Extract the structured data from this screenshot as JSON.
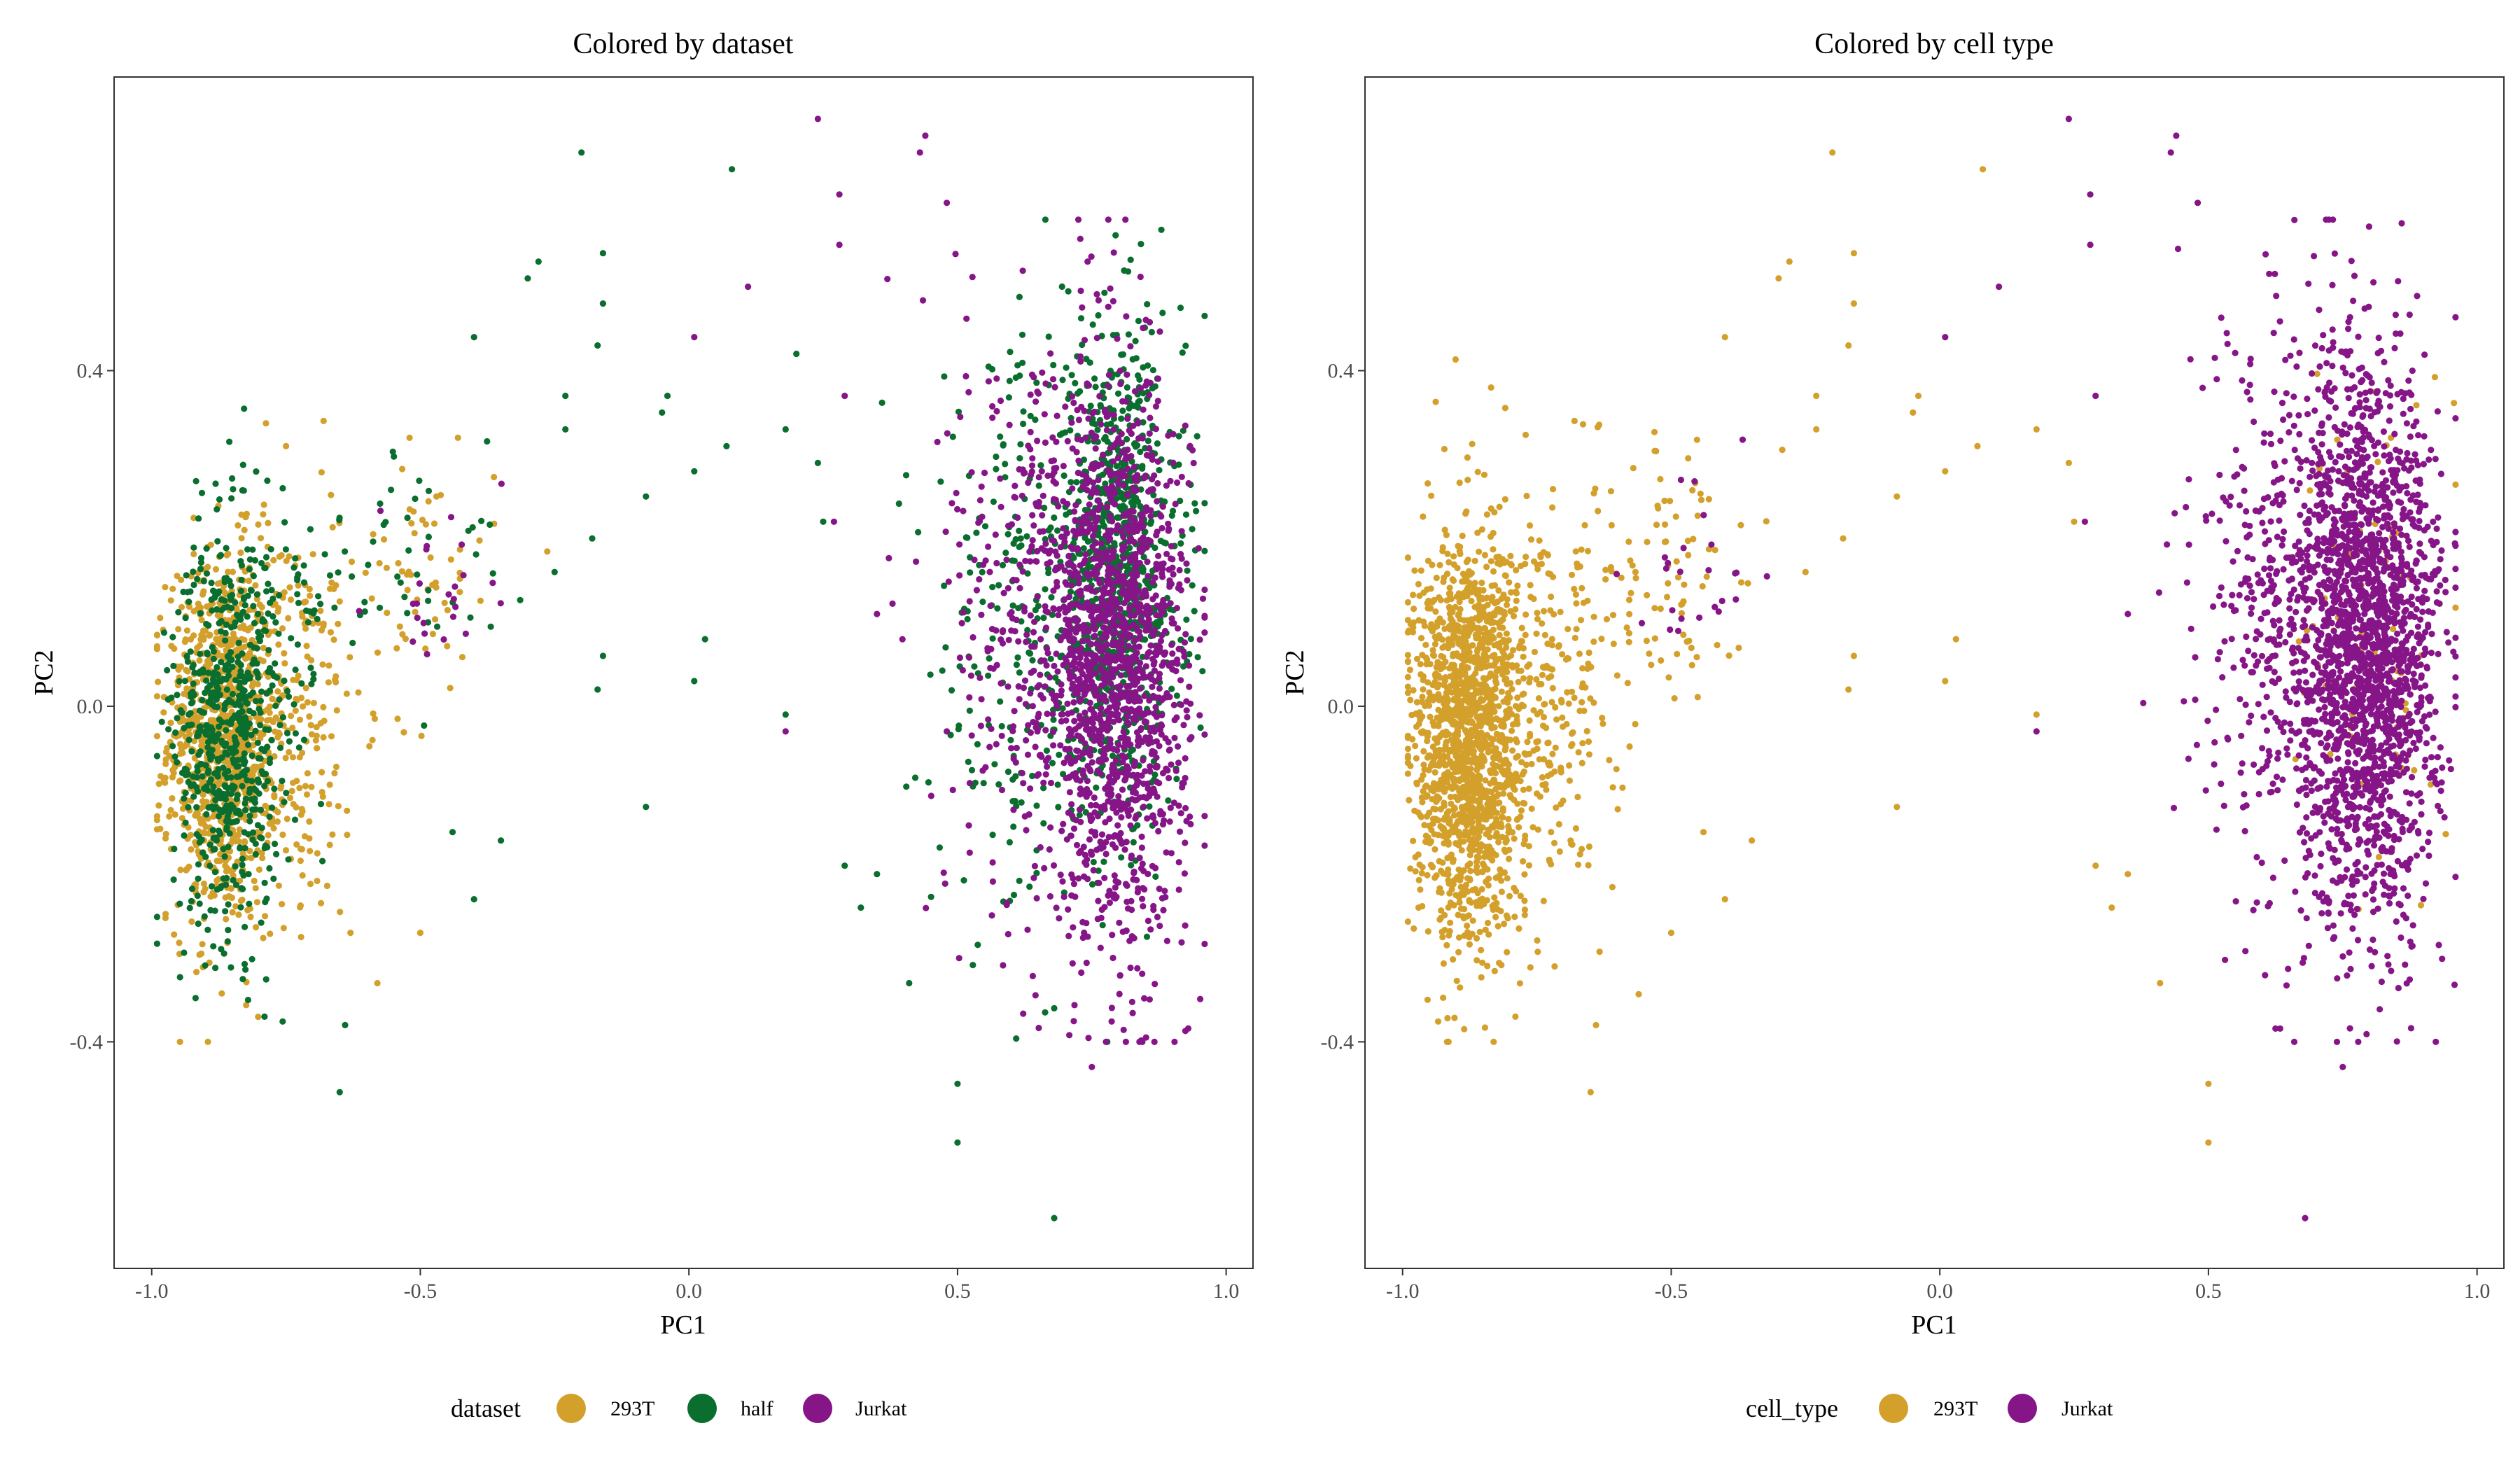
{
  "chart_data": [
    {
      "type": "scatter",
      "title": "Colored by dataset",
      "xlabel": "PC1",
      "ylabel": "PC2",
      "xlim": [
        -1.07,
        1.05
      ],
      "ylim": [
        -0.67,
        0.75
      ],
      "xticks": [
        -1.0,
        -0.5,
        0.0,
        0.5,
        1.0
      ],
      "xtick_labels": [
        "-1.0",
        "-0.5",
        "0.0",
        "0.5",
        "1.0"
      ],
      "yticks": [
        -0.4,
        0.0,
        0.4
      ],
      "ytick_labels": [
        "-0.4",
        "0.0",
        "0.4"
      ],
      "grid": false,
      "legend": {
        "title": "dataset",
        "position": "bottom"
      },
      "series": [
        {
          "name": "293T",
          "color": "#D4A02C",
          "clusters": [
            {
              "cx": -0.87,
              "cy": -0.04,
              "sx": 0.05,
              "sy": 0.11,
              "n": 950
            },
            {
              "cx": -0.75,
              "cy": -0.02,
              "sx": 0.07,
              "sy": 0.12,
              "n": 240
            },
            {
              "cx": -0.52,
              "cy": 0.15,
              "sx": 0.08,
              "sy": 0.08,
              "n": 70
            }
          ],
          "outliers": [
            [
              -0.68,
              0.34
            ],
            [
              -0.52,
              0.32
            ],
            [
              -0.75,
              0.31
            ],
            [
              -0.5,
              -0.27
            ],
            [
              -0.58,
              -0.33
            ],
            [
              -0.63,
              -0.27
            ],
            [
              -0.47,
              0.25
            ],
            [
              -0.43,
              0.32
            ]
          ]
        },
        {
          "name": "half",
          "color": "#0A6E2E",
          "clusters": [
            {
              "cx": -0.86,
              "cy": -0.03,
              "sx": 0.05,
              "sy": 0.12,
              "n": 600
            },
            {
              "cx": -0.76,
              "cy": 0.08,
              "sx": 0.06,
              "sy": 0.1,
              "n": 90
            },
            {
              "cx": -0.5,
              "cy": 0.18,
              "sx": 0.08,
              "sy": 0.07,
              "n": 40
            },
            {
              "cx": 0.8,
              "cy": 0.16,
              "sx": 0.06,
              "sy": 0.14,
              "n": 850
            },
            {
              "cx": 0.63,
              "cy": 0.08,
              "sx": 0.09,
              "sy": 0.17,
              "n": 250
            }
          ],
          "outliers": [
            [
              -0.2,
              0.66
            ],
            [
              0.08,
              0.64
            ],
            [
              -0.28,
              0.53
            ],
            [
              -0.16,
              0.54
            ],
            [
              -0.3,
              0.51
            ],
            [
              -0.16,
              0.48
            ],
            [
              -0.17,
              0.43
            ],
            [
              -0.4,
              0.44
            ],
            [
              -0.23,
              0.37
            ],
            [
              -0.04,
              0.37
            ],
            [
              -0.05,
              0.35
            ],
            [
              0.01,
              0.28
            ],
            [
              -0.23,
              0.33
            ],
            [
              0.07,
              0.31
            ],
            [
              0.18,
              0.33
            ],
            [
              0.24,
              0.29
            ],
            [
              0.25,
              0.22
            ],
            [
              -0.08,
              0.25
            ],
            [
              -0.25,
              0.16
            ],
            [
              -0.18,
              0.2
            ],
            [
              -0.16,
              0.06
            ],
            [
              -0.17,
              0.02
            ],
            [
              0.03,
              0.08
            ],
            [
              0.01,
              0.03
            ],
            [
              0.18,
              -0.01
            ],
            [
              -0.08,
              -0.12
            ],
            [
              -0.35,
              -0.16
            ],
            [
              -0.4,
              -0.23
            ],
            [
              -0.44,
              -0.15
            ],
            [
              -0.65,
              -0.46
            ],
            [
              -0.64,
              -0.38
            ],
            [
              -0.79,
              -0.37
            ],
            [
              0.29,
              -0.19
            ],
            [
              0.35,
              -0.2
            ],
            [
              0.32,
              -0.24
            ],
            [
              0.41,
              -0.33
            ],
            [
              0.5,
              -0.45
            ],
            [
              0.5,
              -0.52
            ],
            [
              0.68,
              -0.61
            ],
            [
              0.68,
              -0.36
            ],
            [
              0.2,
              0.42
            ]
          ]
        },
        {
          "name": "Jurkat",
          "color": "#861588",
          "clusters": [
            {
              "cx": 0.8,
              "cy": 0.05,
              "sx": 0.065,
              "sy": 0.16,
              "n": 1400
            },
            {
              "cx": 0.66,
              "cy": 0.12,
              "sx": 0.09,
              "sy": 0.18,
              "n": 400
            },
            {
              "cx": -0.45,
              "cy": 0.15,
              "sx": 0.06,
              "sy": 0.07,
              "n": 25
            }
          ],
          "outliers": [
            [
              0.24,
              0.7
            ],
            [
              0.44,
              0.68
            ],
            [
              0.43,
              0.66
            ],
            [
              0.28,
              0.61
            ],
            [
              0.48,
              0.6
            ],
            [
              0.28,
              0.55
            ],
            [
              0.11,
              0.5
            ],
            [
              0.01,
              0.44
            ],
            [
              0.29,
              0.37
            ],
            [
              0.27,
              0.22
            ],
            [
              0.18,
              -0.03
            ],
            [
              0.35,
              0.11
            ],
            [
              0.6,
              -0.05
            ],
            [
              0.75,
              -0.43
            ],
            [
              0.48,
              -0.03
            ]
          ]
        }
      ]
    },
    {
      "type": "scatter",
      "title": "Colored by cell type",
      "xlabel": "PC1",
      "ylabel": "PC2",
      "xlim": [
        -1.07,
        1.05
      ],
      "ylim": [
        -0.67,
        0.75
      ],
      "xticks": [
        -1.0,
        -0.5,
        0.0,
        0.5,
        1.0
      ],
      "xtick_labels": [
        "-1.0",
        "-0.5",
        "0.0",
        "0.5",
        "1.0"
      ],
      "yticks": [
        -0.4,
        0.0,
        0.4
      ],
      "ytick_labels": [
        "-0.4",
        "0.0",
        "0.4"
      ],
      "grid": false,
      "legend": {
        "title": "cell_type",
        "position": "bottom"
      },
      "series": [
        {
          "name": "293T",
          "color": "#D4A02C",
          "clusters": [
            {
              "cx": -0.88,
              "cy": -0.04,
              "sx": 0.05,
              "sy": 0.12,
              "n": 1500
            },
            {
              "cx": -0.75,
              "cy": 0.0,
              "sx": 0.07,
              "sy": 0.12,
              "n": 300
            },
            {
              "cx": -0.52,
              "cy": 0.15,
              "sx": 0.08,
              "sy": 0.08,
              "n": 100
            },
            {
              "cx": 0.8,
              "cy": 0.1,
              "sx": 0.06,
              "sy": 0.15,
              "n": 90
            }
          ],
          "outliers": [
            [
              -0.2,
              0.66
            ],
            [
              0.08,
              0.64
            ],
            [
              -0.28,
              0.53
            ],
            [
              -0.16,
              0.54
            ],
            [
              -0.3,
              0.51
            ],
            [
              -0.16,
              0.48
            ],
            [
              -0.17,
              0.43
            ],
            [
              -0.4,
              0.44
            ],
            [
              -0.23,
              0.37
            ],
            [
              -0.04,
              0.37
            ],
            [
              -0.05,
              0.35
            ],
            [
              0.01,
              0.28
            ],
            [
              -0.23,
              0.33
            ],
            [
              0.07,
              0.31
            ],
            [
              0.18,
              0.33
            ],
            [
              0.24,
              0.29
            ],
            [
              0.25,
              0.22
            ],
            [
              -0.08,
              0.25
            ],
            [
              -0.25,
              0.16
            ],
            [
              -0.18,
              0.2
            ],
            [
              -0.16,
              0.06
            ],
            [
              -0.17,
              0.02
            ],
            [
              0.03,
              0.08
            ],
            [
              0.01,
              0.03
            ],
            [
              0.18,
              -0.01
            ],
            [
              -0.08,
              -0.12
            ],
            [
              -0.35,
              -0.16
            ],
            [
              -0.4,
              -0.23
            ],
            [
              -0.44,
              -0.15
            ],
            [
              -0.65,
              -0.46
            ],
            [
              -0.64,
              -0.38
            ],
            [
              -0.79,
              -0.37
            ],
            [
              0.29,
              -0.19
            ],
            [
              0.35,
              -0.2
            ],
            [
              0.32,
              -0.24
            ],
            [
              0.41,
              -0.33
            ],
            [
              0.5,
              -0.45
            ],
            [
              0.5,
              -0.52
            ],
            [
              -0.68,
              0.34
            ],
            [
              -0.5,
              -0.27
            ]
          ]
        },
        {
          "name": "Jurkat",
          "color": "#861588",
          "clusters": [
            {
              "cx": 0.8,
              "cy": 0.07,
              "sx": 0.065,
              "sy": 0.16,
              "n": 1900
            },
            {
              "cx": 0.66,
              "cy": 0.12,
              "sx": 0.09,
              "sy": 0.18,
              "n": 500
            },
            {
              "cx": -0.45,
              "cy": 0.15,
              "sx": 0.06,
              "sy": 0.07,
              "n": 25
            }
          ],
          "outliers": [
            [
              0.24,
              0.7
            ],
            [
              0.44,
              0.68
            ],
            [
              0.43,
              0.66
            ],
            [
              0.28,
              0.61
            ],
            [
              0.48,
              0.6
            ],
            [
              0.28,
              0.55
            ],
            [
              0.11,
              0.5
            ],
            [
              0.01,
              0.44
            ],
            [
              0.29,
              0.37
            ],
            [
              0.27,
              0.22
            ],
            [
              0.18,
              -0.03
            ],
            [
              0.35,
              0.11
            ],
            [
              0.6,
              -0.05
            ],
            [
              0.75,
              -0.43
            ],
            [
              0.68,
              -0.61
            ]
          ]
        }
      ]
    }
  ]
}
